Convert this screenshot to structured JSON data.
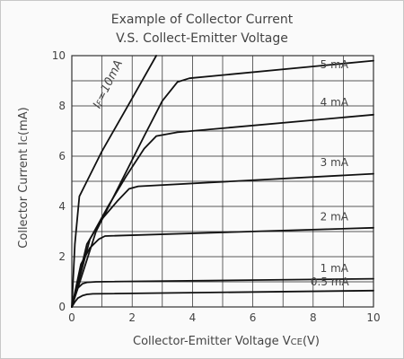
{
  "chart_data": {
    "type": "line",
    "title_line1": "Example of Collector Current",
    "title_line2": "V.S. Collect-Emitter Voltage",
    "xlabel_main": "Collector-Emitter Voltage V",
    "xlabel_sub": "CE",
    "xlabel_unit": "(V)",
    "ylabel_main": "Collector Current I",
    "ylabel_sub": "C",
    "ylabel_unit": "(mA)",
    "xlim": [
      0,
      10
    ],
    "ylim": [
      0,
      10
    ],
    "xticks": [
      0,
      2,
      4,
      6,
      8,
      10
    ],
    "yticks": [
      0,
      2,
      4,
      6,
      8,
      10
    ],
    "grid": true,
    "series": [
      {
        "name": "0.5 mA",
        "x": [
          0,
          0.1,
          0.2,
          0.35,
          0.5,
          0.7,
          10
        ],
        "y": [
          0,
          0.2,
          0.35,
          0.45,
          0.5,
          0.52,
          0.65
        ]
      },
      {
        "name": "1 mA",
        "x": [
          0,
          0.1,
          0.2,
          0.35,
          0.5,
          0.8,
          10
        ],
        "y": [
          0,
          0.45,
          0.75,
          0.92,
          0.98,
          1.0,
          1.12
        ]
      },
      {
        "name": "2 mA",
        "x": [
          0,
          0.3,
          0.6,
          0.9,
          1.1,
          10
        ],
        "y": [
          0,
          1.7,
          2.35,
          2.7,
          2.82,
          3.15
        ]
      },
      {
        "name": "3 mA",
        "x": [
          0,
          0.5,
          1.0,
          1.5,
          1.9,
          2.2,
          10
        ],
        "y": [
          0,
          2.5,
          3.5,
          4.2,
          4.7,
          4.8,
          5.3
        ]
      },
      {
        "name": "4 mA",
        "x": [
          0,
          0.6,
          1.2,
          1.8,
          2.4,
          2.8,
          3.5,
          10
        ],
        "y": [
          0,
          2.7,
          4.0,
          5.2,
          6.3,
          6.8,
          6.95,
          7.65
        ]
      },
      {
        "name": "5 mA",
        "x": [
          0,
          0.8,
          1.6,
          2.4,
          3.0,
          3.5,
          3.9,
          10
        ],
        "y": [
          0,
          3.0,
          4.9,
          6.8,
          8.2,
          8.95,
          9.1,
          9.8
        ]
      },
      {
        "name": "IF=10mA",
        "x": [
          0,
          0.1,
          0.25,
          0.5,
          1.0,
          2.0,
          2.8
        ],
        "y": [
          0,
          2.5,
          4.4,
          5.0,
          6.2,
          8.3,
          10.0
        ]
      }
    ],
    "labels": [
      {
        "text": "5 mA",
        "x": 8.7,
        "y": 9.5
      },
      {
        "text": "4 mA",
        "x": 8.7,
        "y": 8.0
      },
      {
        "text": "3 mA",
        "x": 8.7,
        "y": 5.6
      },
      {
        "text": "2 mA",
        "x": 8.7,
        "y": 3.45
      },
      {
        "text": "1 mA",
        "x": 8.7,
        "y": 1.4
      },
      {
        "text": "0.5 mA",
        "x": 8.55,
        "y": 0.85
      }
    ],
    "if_label": {
      "prefix": "I",
      "sub": "F",
      "suffix": "=10mA",
      "x": 1.3,
      "y": 8.8
    }
  }
}
